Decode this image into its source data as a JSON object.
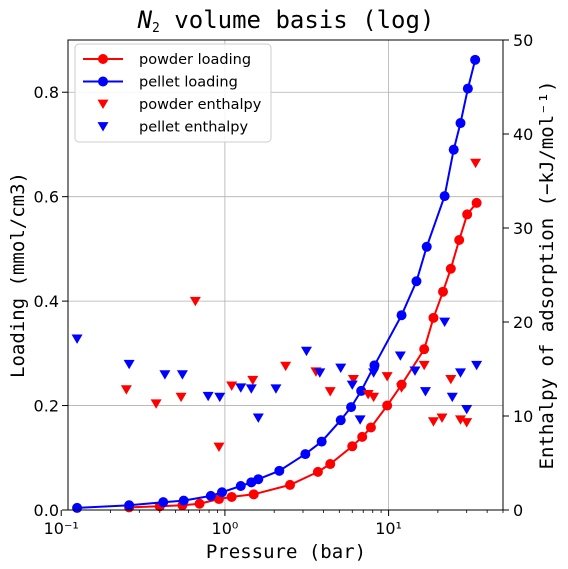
{
  "chart_data": {
    "type": "scatter",
    "title_main": "N",
    "title_sub": "2",
    "title_rest": " volume basis (log)",
    "xlabel": "Pressure (bar)",
    "ylabel": "Loading (mmol/cm3)",
    "ylabel_right": "Enthalpy of adsorption (−kJ/mol⁻¹)",
    "x_scale": "log",
    "xlim": [
      0.11,
      50
    ],
    "ylim": [
      0,
      0.9
    ],
    "ylim_right": [
      0,
      50
    ],
    "grid": true,
    "legend_position": "top-left",
    "x_tick_labels": [
      "10⁻¹",
      "10⁰",
      "10¹"
    ],
    "x_tick_values": [
      0.1,
      1,
      10
    ],
    "y_tick_labels": [
      "0.0",
      "0.2",
      "0.4",
      "0.6",
      "0.8"
    ],
    "y_tick_values": [
      0,
      0.2,
      0.4,
      0.6,
      0.8
    ],
    "y_right_tick_labels": [
      "0",
      "10",
      "20",
      "30",
      "40",
      "50"
    ],
    "y_right_tick_values": [
      0,
      10,
      20,
      30,
      40,
      50
    ],
    "series": [
      {
        "name": "powder loading",
        "style": "line-circle",
        "axis": "left",
        "color": "#ff0000",
        "points": [
          [
            0.26,
            0.005
          ],
          [
            0.4,
            0.007
          ],
          [
            0.55,
            0.009
          ],
          [
            0.7,
            0.012
          ],
          [
            0.92,
            0.021
          ],
          [
            1.1,
            0.025
          ],
          [
            1.5,
            0.03
          ],
          [
            2.5,
            0.048
          ],
          [
            3.7,
            0.073
          ],
          [
            4.4,
            0.088
          ],
          [
            6.0,
            0.122
          ],
          [
            6.9,
            0.14
          ],
          [
            7.8,
            0.158
          ],
          [
            9.8,
            0.2
          ],
          [
            12.0,
            0.24
          ],
          [
            16.5,
            0.308
          ],
          [
            18.8,
            0.368
          ],
          [
            21.5,
            0.418
          ],
          [
            24.0,
            0.462
          ],
          [
            27.0,
            0.517
          ],
          [
            30.2,
            0.566
          ],
          [
            34.5,
            0.588
          ]
        ]
      },
      {
        "name": "pellet loading",
        "style": "line-circle",
        "axis": "left",
        "color": "#0000ff",
        "points": [
          [
            0.125,
            0.004
          ],
          [
            0.26,
            0.009
          ],
          [
            0.42,
            0.015
          ],
          [
            0.56,
            0.018
          ],
          [
            0.82,
            0.027
          ],
          [
            0.96,
            0.034
          ],
          [
            1.25,
            0.046
          ],
          [
            1.45,
            0.053
          ],
          [
            1.6,
            0.059
          ],
          [
            2.15,
            0.075
          ],
          [
            3.1,
            0.107
          ],
          [
            3.9,
            0.131
          ],
          [
            5.1,
            0.172
          ],
          [
            5.9,
            0.197
          ],
          [
            6.8,
            0.228
          ],
          [
            8.2,
            0.277
          ],
          [
            12.0,
            0.373
          ],
          [
            14.8,
            0.438
          ],
          [
            17.1,
            0.504
          ],
          [
            22.0,
            0.601
          ],
          [
            25.0,
            0.69
          ],
          [
            27.5,
            0.741
          ],
          [
            30.5,
            0.807
          ],
          [
            33.8,
            0.862
          ]
        ]
      },
      {
        "name": "powder enthalpy",
        "style": "triangle-down",
        "axis": "right",
        "color": "#ff0000",
        "points": [
          [
            0.25,
            12.8
          ],
          [
            0.38,
            11.3
          ],
          [
            0.54,
            12.0
          ],
          [
            0.66,
            22.2
          ],
          [
            0.92,
            6.7
          ],
          [
            1.1,
            13.2
          ],
          [
            1.48,
            13.8
          ],
          [
            2.35,
            15.3
          ],
          [
            3.6,
            14.7
          ],
          [
            4.4,
            12.6
          ],
          [
            6.1,
            13.9
          ],
          [
            7.5,
            12.3
          ],
          [
            8.1,
            12.0
          ],
          [
            9.8,
            14.2
          ],
          [
            12.0,
            13.0
          ],
          [
            16.5,
            15.4
          ],
          [
            18.8,
            9.4
          ],
          [
            21.2,
            9.8
          ],
          [
            24.0,
            13.9
          ],
          [
            27.5,
            9.6
          ],
          [
            30.0,
            9.3
          ],
          [
            34.0,
            36.9
          ]
        ]
      },
      {
        "name": "pellet enthalpy",
        "style": "triangle-down",
        "axis": "right",
        "color": "#0000ff",
        "points": [
          [
            0.125,
            18.2
          ],
          [
            0.26,
            15.5
          ],
          [
            0.43,
            14.4
          ],
          [
            0.55,
            14.4
          ],
          [
            0.79,
            12.1
          ],
          [
            0.93,
            12.0
          ],
          [
            1.25,
            13.0
          ],
          [
            1.45,
            12.9
          ],
          [
            1.6,
            9.8
          ],
          [
            2.05,
            12.9
          ],
          [
            3.15,
            16.9
          ],
          [
            3.8,
            14.6
          ],
          [
            5.1,
            15.1
          ],
          [
            6.0,
            13.3
          ],
          [
            6.7,
            9.6
          ],
          [
            8.1,
            14.6
          ],
          [
            11.8,
            16.4
          ],
          [
            14.5,
            14.8
          ],
          [
            16.8,
            12.6
          ],
          [
            22.0,
            20.0
          ],
          [
            24.5,
            12.0
          ],
          [
            27.5,
            14.6
          ],
          [
            30.0,
            10.7
          ],
          [
            34.5,
            15.4
          ]
        ]
      }
    ]
  }
}
